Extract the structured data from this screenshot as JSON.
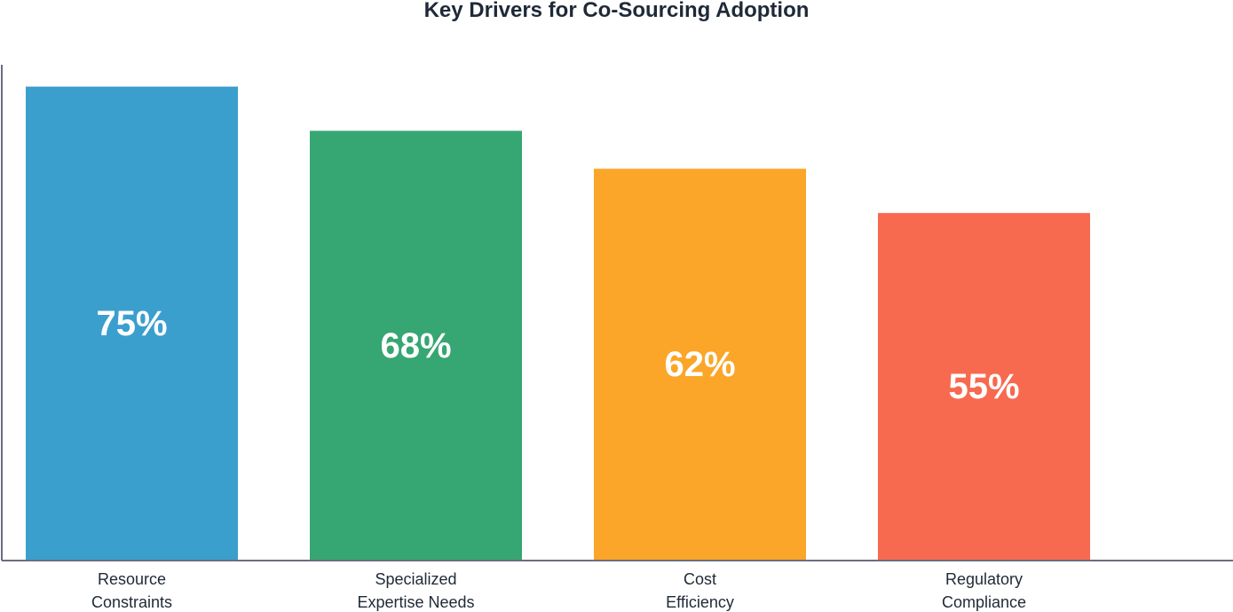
{
  "chart_data": {
    "type": "bar",
    "title": "Key Drivers for Co-Sourcing Adoption",
    "categories": [
      [
        "Resource",
        "Constraints"
      ],
      [
        "Specialized",
        "Expertise Needs"
      ],
      [
        "Cost",
        "Efficiency"
      ],
      [
        "Regulatory",
        "Compliance"
      ]
    ],
    "values": [
      75,
      68,
      62,
      55
    ],
    "value_labels": [
      "75%",
      "68%",
      "62%",
      "55%"
    ],
    "colors": [
      "#3b9fce",
      "#36a672",
      "#fba628",
      "#f76a50"
    ],
    "ylim": [
      0,
      80
    ],
    "grid": false,
    "legend": "none"
  }
}
